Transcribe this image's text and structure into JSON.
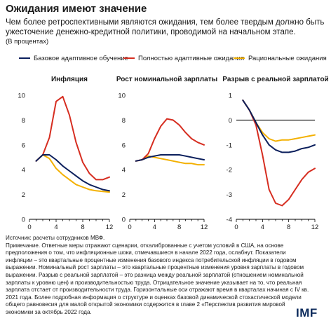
{
  "title": "Ожидания имеют значение",
  "subtitle": "Чем более ретроспективными являются ожидания, тем более твердым должно быть ужесточение денежно-кредитной политики, проводимой на начальном этапе.",
  "units": "(В процентах)",
  "notes": {
    "source": "Источник: расчеты сотрудников МВФ.",
    "note": "Примечание. Ответные меры отражают сценарии, откалиброванные с учетом условий в США, на основе предположения о том, что инфляционные шоки, отмечавшиеся в начале 2022 года, ослабнут. Показатели инфляции – это квартальные процентные изменения базового индекса потребительской инфляции в годовом выражении. Номинальный рост зарплаты – это квартальные процентные изменения уровня зарплаты в годовом выражении. Разрыв с реальной зарплатой – это разница между реальной зарплатой (отношением номинальной зарплаты к уровню цен) и производительностью труда. Отрицательное значение указывает на то, что реальная зарплата отстает от производительности труда. Горизонтальные оси отражают время в кварталах начиная с IV кв. 2021 года. Более подробная информация о структуре и оценках базовой динамической стохастической модели общего равновесия для малой открытой экономики содержится в главе 2 «Перспектив развития мировой экономики за октябрь 2022 года."
  },
  "logo": "IMF",
  "colors": {
    "adaptive": "#0b1f5c",
    "fully_adaptive": "#d62d20",
    "rational": "#f3b000",
    "zero_line": "#000000"
  },
  "legend": [
    "Базовое адаптивное обучение",
    "Полностью адаптивные ожидания",
    "Рациональные ожидания"
  ],
  "chart_data": [
    {
      "type": "line",
      "title": "Инфляция",
      "x": [
        1,
        2,
        3,
        4,
        5,
        6,
        7,
        8,
        9,
        10,
        11,
        12
      ],
      "xticks": [
        0,
        4,
        8,
        12
      ],
      "ylim": [
        0,
        10
      ],
      "yticks": [
        0,
        2,
        4,
        6,
        8,
        10
      ],
      "grid": false,
      "series": [
        {
          "name": "Базовое адаптивное обучение",
          "values": [
            4.7,
            5.2,
            5.2,
            4.8,
            4.3,
            3.9,
            3.5,
            3.1,
            2.8,
            2.6,
            2.4,
            2.3
          ]
        },
        {
          "name": "Полностью адаптивные ожидания",
          "values": [
            4.7,
            5.2,
            6.6,
            9.5,
            9.9,
            8.4,
            6.2,
            4.6,
            3.7,
            3.2,
            3.2,
            3.4
          ]
        },
        {
          "name": "Рациональные ожидания",
          "values": [
            4.7,
            5.2,
            4.9,
            4.1,
            3.6,
            3.2,
            2.8,
            2.6,
            2.4,
            2.3,
            2.25,
            2.2
          ]
        }
      ]
    },
    {
      "type": "line",
      "title": "Рост номинальной зарплаты",
      "x": [
        1,
        2,
        3,
        4,
        5,
        6,
        7,
        8,
        9,
        10,
        11,
        12
      ],
      "xticks": [
        0,
        4,
        8,
        12
      ],
      "ylim": [
        0,
        10
      ],
      "yticks": [
        0,
        2,
        4,
        6,
        8,
        10
      ],
      "grid": false,
      "series": [
        {
          "name": "Базовое адаптивное обучение",
          "values": [
            4.7,
            4.8,
            5.0,
            5.1,
            5.2,
            5.2,
            5.2,
            5.2,
            5.1,
            5.0,
            4.9,
            4.8
          ]
        },
        {
          "name": "Полностью адаптивные ожидания",
          "values": [
            4.7,
            4.8,
            5.3,
            6.5,
            7.5,
            8.1,
            8.0,
            7.6,
            7.0,
            6.5,
            6.2,
            6.0
          ]
        },
        {
          "name": "Рациональные ожидания",
          "values": [
            4.7,
            4.8,
            5.1,
            5.0,
            4.9,
            4.8,
            4.7,
            4.6,
            4.5,
            4.5,
            4.4,
            4.4
          ]
        }
      ]
    },
    {
      "type": "line",
      "title": "Разрыв с реальной зарплатой",
      "x": [
        1,
        2,
        3,
        4,
        5,
        6,
        7,
        8,
        9,
        10,
        11,
        12
      ],
      "xticks": [
        0,
        4,
        8,
        12
      ],
      "ylim": [
        -4,
        1
      ],
      "yticks": [
        -4,
        -3,
        -2,
        -1,
        0,
        1
      ],
      "grid": false,
      "series": [
        {
          "name": "Базовое адаптивное обучение",
          "values": [
            0.8,
            0.4,
            -0.1,
            -0.6,
            -1.0,
            -1.2,
            -1.3,
            -1.3,
            -1.25,
            -1.15,
            -1.1,
            -1.0
          ]
        },
        {
          "name": "Полностью адаптивные ожидания",
          "values": [
            0.8,
            0.4,
            -0.2,
            -1.4,
            -2.8,
            -3.35,
            -3.45,
            -3.2,
            -2.8,
            -2.4,
            -2.1,
            -1.95
          ]
        },
        {
          "name": "Рациональные ожидания",
          "values": [
            0.8,
            0.4,
            -0.1,
            -0.5,
            -0.75,
            -0.85,
            -0.8,
            -0.8,
            -0.75,
            -0.7,
            -0.65,
            -0.6
          ]
        }
      ]
    }
  ]
}
